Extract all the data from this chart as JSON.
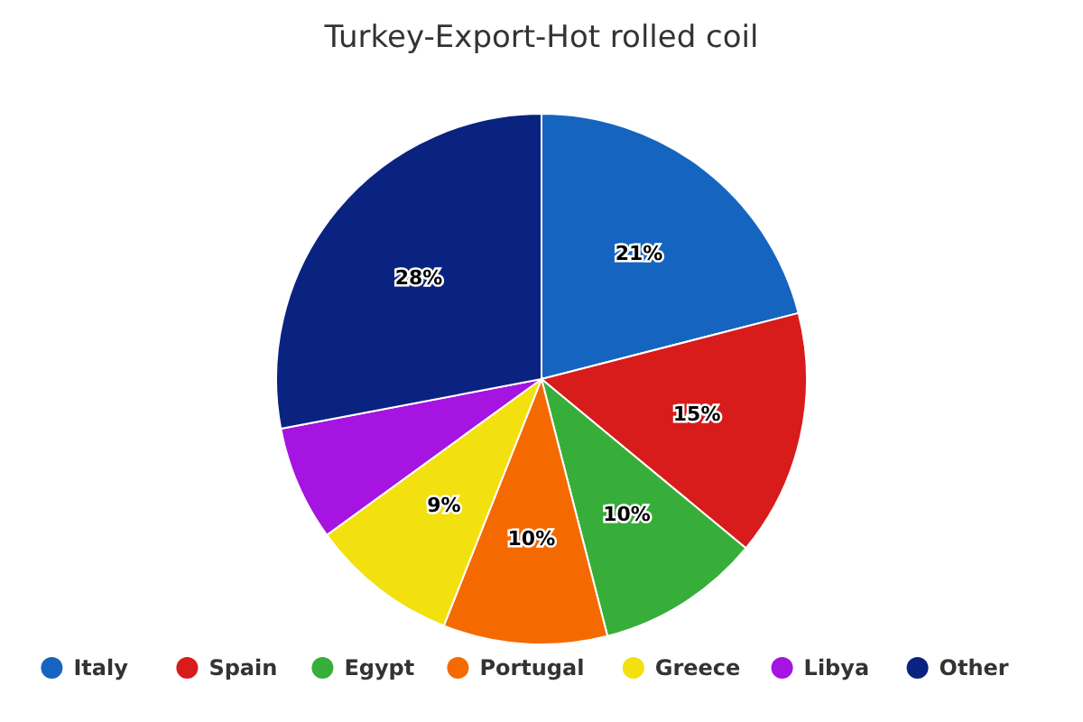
{
  "chart_data": {
    "type": "pie",
    "title": "Turkey-Export-Hot rolled coil",
    "categories": [
      "Italy",
      "Spain",
      "Egypt",
      "Portugal",
      "Greece",
      "Libya",
      "Other"
    ],
    "values": [
      21,
      15,
      10,
      10,
      9,
      7,
      28
    ],
    "colors": [
      "#1565c0",
      "#d81b1b",
      "#38ae3a",
      "#f56a00",
      "#f2e10f",
      "#a514e0",
      "#0a2380"
    ],
    "value_labels": [
      "21%",
      "15%",
      "10%",
      "10%",
      "9%",
      null,
      "28%"
    ],
    "legend": "bottom"
  }
}
